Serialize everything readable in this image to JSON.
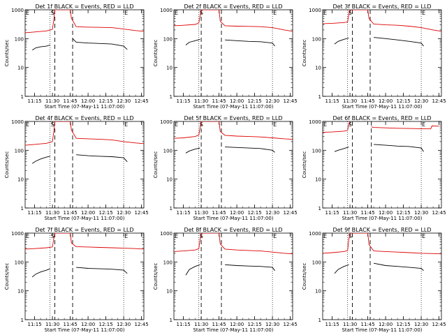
{
  "figure": {
    "xlabel": "Start Time (07-May-11 11:07:00)",
    "ylabel": "Counts/sec",
    "x_ticks": [
      "11:15",
      "11:30",
      "11:45",
      "12:00",
      "12:15",
      "12:30",
      "12:45"
    ],
    "y_ticks": [
      "1",
      "10",
      "100",
      "1000"
    ],
    "colors": {
      "events": "#000000",
      "lld": "#dd0000",
      "axes": "#000000",
      "background": "#ffffff"
    }
  },
  "chart_data": [
    {
      "type": "line",
      "title": "Det 1f BLACK = Events, RED = LLD",
      "xlim": [
        "11:07",
        "12:47"
      ],
      "ylim": [
        1,
        1000
      ],
      "y_scale": "log",
      "markers": [
        {
          "label": "E",
          "x": "11:07"
        },
        {
          "label": "S",
          "x": "11:28"
        },
        {
          "label": "E",
          "x": "12:30"
        }
      ],
      "dashed_lines": [
        "11:32",
        "11:47"
      ],
      "dotted_lines": [
        "11:28",
        "12:30"
      ],
      "series": [
        {
          "name": "LLD",
          "color": "#dd0000",
          "x": [
            "11:07",
            "11:15",
            "11:25",
            "11:30",
            "11:31",
            "11:32",
            "11:33",
            "11:40",
            "11:45",
            "11:46",
            "11:50",
            "12:00",
            "12:10",
            "12:20",
            "12:30",
            "12:40",
            "12:47"
          ],
          "y": [
            160,
            170,
            185,
            210,
            400,
            1000,
            1000,
            1000,
            1000,
            500,
            260,
            250,
            245,
            240,
            215,
            190,
            180
          ]
        },
        {
          "name": "Events",
          "color": "#000000",
          "x": [
            "11:13",
            "11:16",
            "11:20",
            "11:25",
            "11:28",
            "11:33",
            "11:46",
            "11:47",
            "11:50",
            "12:00",
            "12:10",
            "12:20",
            "12:30",
            "12:33"
          ],
          "y": [
            40,
            48,
            52,
            55,
            60,
            null,
            null,
            100,
            75,
            70,
            68,
            65,
            55,
            42
          ]
        }
      ]
    },
    {
      "type": "line",
      "title": "Det 2f BLACK = Events, RED = LLD",
      "xlim": [
        "11:07",
        "12:47"
      ],
      "ylim": [
        1,
        1000
      ],
      "y_scale": "log",
      "markers": [
        {
          "label": "E",
          "x": "11:07"
        },
        {
          "label": "S",
          "x": "11:28"
        },
        {
          "label": "E",
          "x": "12:30"
        }
      ],
      "dashed_lines": [
        "11:30",
        "11:47"
      ],
      "dotted_lines": [
        "11:28",
        "12:30"
      ],
      "series": [
        {
          "name": "LLD",
          "color": "#dd0000",
          "x": [
            "11:07",
            "11:15",
            "11:25",
            "11:28",
            "11:29",
            "11:30",
            "11:45",
            "11:46",
            "11:50",
            "12:00",
            "12:10",
            "12:20",
            "12:30",
            "12:40",
            "12:47"
          ],
          "y": [
            280,
            290,
            310,
            350,
            600,
            1000,
            1000,
            400,
            280,
            270,
            265,
            260,
            240,
            200,
            180
          ]
        },
        {
          "name": "Events",
          "color": "#000000",
          "x": [
            "11:17",
            "11:20",
            "11:25",
            "11:29",
            "11:47",
            "11:50",
            "12:00",
            "12:10",
            "12:20",
            "12:30",
            "12:32"
          ],
          "y": [
            60,
            75,
            85,
            95,
            null,
            90,
            85,
            80,
            78,
            70,
            55
          ]
        }
      ]
    },
    {
      "type": "line",
      "title": "Det 3f BLACK = Events, RED = LLD",
      "xlim": [
        "11:07",
        "12:47"
      ],
      "ylim": [
        1,
        1000
      ],
      "y_scale": "log",
      "markers": [
        {
          "label": "E",
          "x": "11:07"
        },
        {
          "label": "S",
          "x": "11:28"
        },
        {
          "label": "E",
          "x": "12:30"
        }
      ],
      "dashed_lines": [
        "11:32",
        "11:47"
      ],
      "dotted_lines": [
        "11:28",
        "12:30"
      ],
      "series": [
        {
          "name": "LLD",
          "color": "#dd0000",
          "x": [
            "11:07",
            "11:15",
            "11:25",
            "11:28",
            "11:29",
            "11:30",
            "11:45",
            "11:46",
            "11:50",
            "12:00",
            "12:10",
            "12:20",
            "12:30",
            "12:40",
            "12:47"
          ],
          "y": [
            330,
            340,
            360,
            380,
            700,
            1000,
            1000,
            500,
            320,
            300,
            290,
            270,
            240,
            200,
            180
          ]
        },
        {
          "name": "Events",
          "color": "#000000",
          "x": [
            "11:17",
            "11:20",
            "11:25",
            "11:29",
            "11:47",
            "11:50",
            "12:00",
            "12:10",
            "12:20",
            "12:30",
            "12:32"
          ],
          "y": [
            65,
            80,
            95,
            105,
            null,
            110,
            100,
            90,
            80,
            70,
            55
          ]
        }
      ]
    },
    {
      "type": "line",
      "title": "Det 4f BLACK = Events, RED = LLD",
      "xlim": [
        "11:07",
        "12:47"
      ],
      "ylim": [
        1,
        1000
      ],
      "y_scale": "log",
      "markers": [
        {
          "label": "E",
          "x": "11:07"
        },
        {
          "label": "S",
          "x": "11:28"
        },
        {
          "label": "E",
          "x": "12:30"
        }
      ],
      "dashed_lines": [
        "11:32",
        "11:47"
      ],
      "dotted_lines": [
        "11:28",
        "12:30"
      ],
      "series": [
        {
          "name": "LLD",
          "color": "#dd0000",
          "x": [
            "11:07",
            "11:15",
            "11:25",
            "11:30",
            "11:31",
            "11:32",
            "11:33",
            "11:40",
            "11:45",
            "11:46",
            "11:50",
            "12:00",
            "12:10",
            "12:20",
            "12:30",
            "12:40",
            "12:47"
          ],
          "y": [
            150,
            160,
            175,
            200,
            400,
            1000,
            1000,
            1000,
            1000,
            500,
            260,
            250,
            240,
            230,
            200,
            180,
            170
          ]
        },
        {
          "name": "Events",
          "color": "#000000",
          "x": [
            "11:13",
            "11:16",
            "11:20",
            "11:25",
            "11:28",
            "11:47",
            "11:50",
            "12:00",
            "12:10",
            "12:20",
            "12:30",
            "12:33"
          ],
          "y": [
            35,
            42,
            50,
            58,
            62,
            null,
            70,
            65,
            62,
            60,
            55,
            40
          ]
        }
      ]
    },
    {
      "type": "line",
      "title": "Det 5f BLACK = Events, RED = LLD",
      "xlim": [
        "11:07",
        "12:47"
      ],
      "ylim": [
        1,
        1000
      ],
      "y_scale": "log",
      "markers": [
        {
          "label": "E",
          "x": "11:07"
        },
        {
          "label": "S",
          "x": "11:28"
        },
        {
          "label": "E",
          "x": "12:30"
        }
      ],
      "dashed_lines": [
        "11:30",
        "11:47"
      ],
      "dotted_lines": [
        "11:28",
        "12:30"
      ],
      "series": [
        {
          "name": "LLD",
          "color": "#dd0000",
          "x": [
            "11:07",
            "11:15",
            "11:25",
            "11:28",
            "11:29",
            "11:30",
            "11:45",
            "11:46",
            "11:50",
            "12:00",
            "12:10",
            "12:20",
            "12:30",
            "12:40",
            "12:47"
          ],
          "y": [
            260,
            270,
            300,
            340,
            600,
            1000,
            1000,
            450,
            330,
            310,
            300,
            290,
            270,
            250,
            240
          ]
        },
        {
          "name": "Events",
          "color": "#000000",
          "x": [
            "11:17",
            "11:20",
            "11:25",
            "11:29",
            "11:47",
            "11:50",
            "12:00",
            "12:10",
            "12:20",
            "12:30",
            "12:32"
          ],
          "y": [
            80,
            95,
            110,
            120,
            null,
            130,
            125,
            120,
            115,
            100,
            85
          ]
        }
      ]
    },
    {
      "type": "line",
      "title": "Det 6f BLACK = Events, RED = LLD",
      "xlim": [
        "11:07",
        "12:47"
      ],
      "ylim": [
        1,
        1000
      ],
      "y_scale": "log",
      "markers": [
        {
          "label": "E",
          "x": "11:07"
        },
        {
          "label": "S",
          "x": "11:28"
        },
        {
          "label": "E",
          "x": "12:30"
        }
      ],
      "dashed_lines": [
        "11:32",
        "11:48"
      ],
      "dotted_lines": [
        "11:28",
        "12:30"
      ],
      "series": [
        {
          "name": "LLD",
          "color": "#dd0000",
          "x": [
            "11:07",
            "11:15",
            "11:25",
            "11:28",
            "11:29",
            "11:30",
            "11:47",
            "11:48",
            "11:50",
            "12:00",
            "12:10",
            "12:20",
            "12:30",
            "12:38",
            "12:39",
            "12:45"
          ],
          "y": [
            420,
            430,
            460,
            490,
            800,
            1000,
            null,
            650,
            620,
            600,
            580,
            570,
            560,
            550,
            700,
            680
          ]
        },
        {
          "name": "Events",
          "color": "#000000",
          "x": [
            "11:17",
            "11:20",
            "11:25",
            "11:29",
            "11:48",
            "11:50",
            "12:00",
            "12:10",
            "12:20",
            "12:30",
            "12:32"
          ],
          "y": [
            90,
            100,
            115,
            130,
            null,
            160,
            150,
            140,
            135,
            120,
            90
          ]
        }
      ]
    },
    {
      "type": "line",
      "title": "Det 7f BLACK = Events, RED = LLD",
      "xlim": [
        "11:07",
        "12:47"
      ],
      "ylim": [
        1,
        1000
      ],
      "y_scale": "log",
      "markers": [
        {
          "label": "E",
          "x": "11:07"
        },
        {
          "label": "S",
          "x": "11:28"
        },
        {
          "label": "E",
          "x": "12:30"
        }
      ],
      "dashed_lines": [
        "11:32",
        "11:47"
      ],
      "dotted_lines": [
        "11:28",
        "12:30"
      ],
      "series": [
        {
          "name": "LLD",
          "color": "#dd0000",
          "x": [
            "11:07",
            "11:15",
            "11:25",
            "11:30",
            "11:31",
            "11:32",
            "11:33",
            "11:40",
            "11:45",
            "11:46",
            "11:50",
            "12:00",
            "12:10",
            "12:20",
            "12:30",
            "12:40",
            "12:47"
          ],
          "y": [
            280,
            290,
            310,
            330,
            600,
            1000,
            1000,
            1000,
            1000,
            450,
            340,
            330,
            320,
            310,
            300,
            290,
            280
          ]
        },
        {
          "name": "Events",
          "color": "#000000",
          "x": [
            "11:13",
            "11:16",
            "11:20",
            "11:25",
            "11:28",
            "11:47",
            "11:50",
            "12:00",
            "12:10",
            "12:20",
            "12:30",
            "12:33"
          ],
          "y": [
            30,
            38,
            45,
            52,
            58,
            null,
            65,
            60,
            58,
            56,
            52,
            40
          ]
        }
      ]
    },
    {
      "type": "line",
      "title": "Det 8f BLACK = Events, RED = LLD",
      "xlim": [
        "11:07",
        "12:47"
      ],
      "ylim": [
        1,
        1000
      ],
      "y_scale": "log",
      "markers": [
        {
          "label": "E",
          "x": "11:07"
        },
        {
          "label": "S",
          "x": "11:28"
        },
        {
          "label": "E",
          "x": "12:30"
        }
      ],
      "dashed_lines": [
        "11:30",
        "11:47"
      ],
      "dotted_lines": [
        "11:28",
        "12:30"
      ],
      "series": [
        {
          "name": "LLD",
          "color": "#dd0000",
          "x": [
            "11:07",
            "11:15",
            "11:25",
            "11:28",
            "11:29",
            "11:30",
            "11:45",
            "11:46",
            "11:50",
            "12:00",
            "12:10",
            "12:20",
            "12:30",
            "12:40",
            "12:47"
          ],
          "y": [
            230,
            240,
            260,
            290,
            600,
            1000,
            1000,
            420,
            280,
            260,
            250,
            240,
            220,
            200,
            190
          ]
        },
        {
          "name": "Events",
          "color": "#000000",
          "x": [
            "11:17",
            "11:20",
            "11:25",
            "11:29",
            "11:47",
            "11:50",
            "12:00",
            "12:10",
            "12:20",
            "12:30",
            "12:32"
          ],
          "y": [
            35,
            55,
            70,
            80,
            null,
            80,
            75,
            72,
            70,
            65,
            50
          ]
        }
      ]
    },
    {
      "type": "line",
      "title": "Det 9f BLACK = Events, RED = LLD",
      "xlim": [
        "11:07",
        "12:47"
      ],
      "ylim": [
        1,
        1000
      ],
      "y_scale": "log",
      "markers": [
        {
          "label": "E",
          "x": "11:07"
        },
        {
          "label": "S",
          "x": "11:28"
        },
        {
          "label": "E",
          "x": "12:30"
        }
      ],
      "dashed_lines": [
        "11:32",
        "11:47"
      ],
      "dotted_lines": [
        "11:28",
        "12:30"
      ],
      "series": [
        {
          "name": "LLD",
          "color": "#dd0000",
          "x": [
            "11:07",
            "11:15",
            "11:25",
            "11:28",
            "11:29",
            "11:30",
            "11:45",
            "11:46",
            "11:50",
            "12:00",
            "12:10",
            "12:20",
            "12:30",
            "12:40",
            "12:47"
          ],
          "y": [
            200,
            210,
            230,
            250,
            600,
            1000,
            1000,
            400,
            240,
            230,
            220,
            210,
            200,
            195,
            190
          ]
        },
        {
          "name": "Events",
          "color": "#000000",
          "x": [
            "11:17",
            "11:20",
            "11:25",
            "11:29",
            "11:47",
            "11:50",
            "12:00",
            "12:10",
            "12:20",
            "12:30",
            "12:32"
          ],
          "y": [
            40,
            55,
            70,
            80,
            null,
            90,
            75,
            70,
            65,
            60,
            50
          ]
        }
      ]
    }
  ]
}
